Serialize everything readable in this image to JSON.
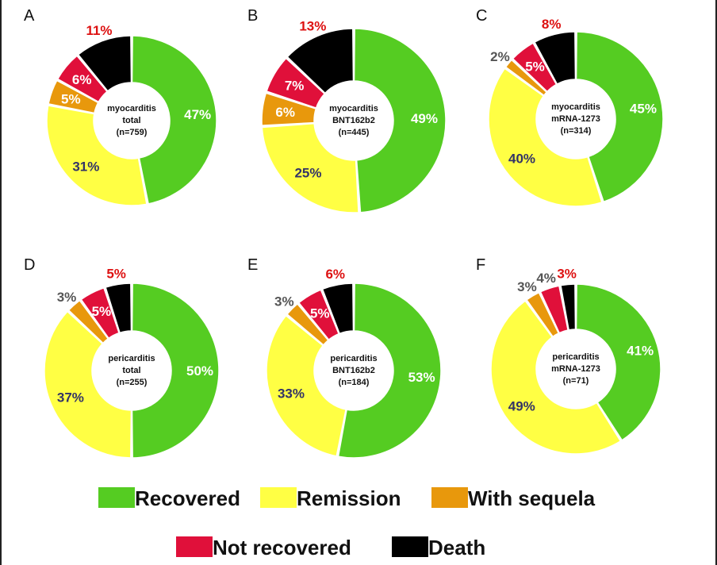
{
  "chart_data": [
    {
      "type": "pie",
      "panel": "A",
      "center_label": [
        "myocarditis",
        "total",
        "(n=759)"
      ],
      "slices": [
        {
          "category": "Recovered",
          "value": 47,
          "label": "47%"
        },
        {
          "category": "Remission",
          "value": 31,
          "label": "31%"
        },
        {
          "category": "With sequela",
          "value": 5,
          "label": "5%"
        },
        {
          "category": "Not recovered",
          "value": 6,
          "label": "6%"
        },
        {
          "category": "Death",
          "value": 11,
          "label": "11%"
        }
      ]
    },
    {
      "type": "pie",
      "panel": "B",
      "center_label": [
        "myocarditis",
        "BNT162b2",
        "(n=445)"
      ],
      "slices": [
        {
          "category": "Recovered",
          "value": 49,
          "label": "49%"
        },
        {
          "category": "Remission",
          "value": 25,
          "label": "25%"
        },
        {
          "category": "With sequela",
          "value": 6,
          "label": "6%"
        },
        {
          "category": "Not recovered",
          "value": 7,
          "label": "7%"
        },
        {
          "category": "Death",
          "value": 13,
          "label": "13%"
        }
      ]
    },
    {
      "type": "pie",
      "panel": "C",
      "center_label": [
        "myocarditis",
        "mRNA-1273",
        "(n=314)"
      ],
      "slices": [
        {
          "category": "Recovered",
          "value": 45,
          "label": "45%"
        },
        {
          "category": "Remission",
          "value": 40,
          "label": "40%"
        },
        {
          "category": "With sequela",
          "value": 2,
          "label": "2%"
        },
        {
          "category": "Not recovered",
          "value": 5,
          "label": "5%"
        },
        {
          "category": "Death",
          "value": 8,
          "label": "8%"
        }
      ]
    },
    {
      "type": "pie",
      "panel": "D",
      "center_label": [
        "pericarditis",
        "total",
        "(n=255)"
      ],
      "slices": [
        {
          "category": "Recovered",
          "value": 50,
          "label": "50%"
        },
        {
          "category": "Remission",
          "value": 37,
          "label": "37%"
        },
        {
          "category": "With sequela",
          "value": 3,
          "label": "3%"
        },
        {
          "category": "Not recovered",
          "value": 5,
          "label": "5%"
        },
        {
          "category": "Death",
          "value": 5,
          "label": "5%"
        }
      ]
    },
    {
      "type": "pie",
      "panel": "E",
      "center_label": [
        "pericarditis",
        "BNT162b2",
        "(n=184)"
      ],
      "slices": [
        {
          "category": "Recovered",
          "value": 53,
          "label": "53%"
        },
        {
          "category": "Remission",
          "value": 33,
          "label": "33%"
        },
        {
          "category": "With sequela",
          "value": 3,
          "label": "3%"
        },
        {
          "category": "Not recovered",
          "value": 5,
          "label": "5%"
        },
        {
          "category": "Death",
          "value": 6,
          "label": "6%"
        }
      ]
    },
    {
      "type": "pie",
      "panel": "F",
      "center_label": [
        "pericarditis",
        "mRNA-1273",
        "(n=71)"
      ],
      "slices": [
        {
          "category": "Recovered",
          "value": 41,
          "label": "41%"
        },
        {
          "category": "Remission",
          "value": 49,
          "label": "49%"
        },
        {
          "category": "With sequela",
          "value": 3,
          "label": "3%"
        },
        {
          "category": "Not recovered",
          "value": 4,
          "label": "4%"
        },
        {
          "category": "Death",
          "value": 3,
          "label": "3%"
        }
      ]
    }
  ],
  "legend": [
    {
      "label": "Recovered",
      "color": "#55cc22"
    },
    {
      "label": "Remission",
      "color": "#ffff44"
    },
    {
      "label": "With sequela",
      "color": "#e8980c"
    },
    {
      "label": "Not recovered",
      "color": "#e0103a"
    },
    {
      "label": "Death",
      "color": "#000000"
    }
  ],
  "colors": {
    "Recovered": "#55cc22",
    "Remission": "#ffff44",
    "With sequela": "#e8980c",
    "Not recovered": "#e0103a",
    "Death": "#000000",
    "label_inside": "#ffffff",
    "label_remission": "#333366",
    "label_small_outside": "#555555",
    "label_death": "#dd1111"
  }
}
